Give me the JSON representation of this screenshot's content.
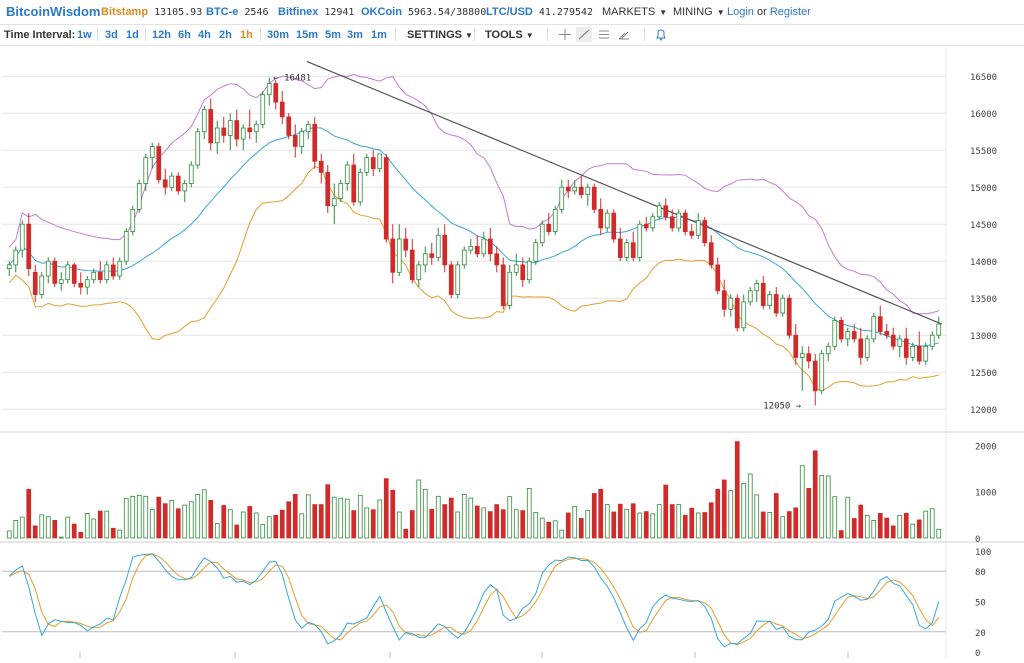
{
  "header": {
    "logo": "BitcoinWisdom",
    "tickers": [
      {
        "name": "Bitstamp",
        "value": "13105.93",
        "highlight": true
      },
      {
        "name": "BTC-e",
        "value": "2546",
        "highlight": false
      },
      {
        "name": "Bitfinex",
        "value": "12941",
        "highlight": false
      },
      {
        "name": "OKCoin",
        "value": "5963.54/38800",
        "highlight": false
      },
      {
        "name": "LTC/USD",
        "value": "41.279542",
        "highlight": false
      }
    ],
    "menus": [
      "MARKETS",
      "MINING"
    ],
    "login": "Login",
    "or": "or",
    "register": "Register"
  },
  "toolbar": {
    "label": "Time Interval:",
    "intervals": [
      "1w",
      "3d",
      "1d",
      "12h",
      "6h",
      "4h",
      "2h",
      "1h",
      "30m",
      "15m",
      "5m",
      "3m",
      "1m"
    ],
    "active_interval": "1h",
    "settings": "SETTINGS",
    "tools": "TOOLS",
    "tool_icons": [
      "crosshair-icon",
      "trendline-icon",
      "horizontal-lines-icon",
      "brush-icon",
      "bell-icon"
    ]
  },
  "chart_data": {
    "type": "candlestick",
    "price_axis": {
      "ticks": [
        16500,
        16000,
        15500,
        15000,
        14500,
        14000,
        13500,
        13000,
        12500,
        12000
      ],
      "range": [
        11800,
        16800
      ]
    },
    "annotations": {
      "high": "16481",
      "low": "12050"
    },
    "volume_axis": {
      "ticks": [
        2000,
        1000,
        0
      ],
      "range": [
        0,
        2200
      ]
    },
    "stoch_axis": {
      "ticks": [
        100,
        80,
        50,
        20,
        0
      ],
      "range": [
        0,
        105
      ]
    },
    "colors": {
      "up": "#2e8b3a",
      "down": "#d12a2a",
      "basis": "#3aa6d8",
      "upper_band": "#c57ad6",
      "lower_band": "#e0a030",
      "trendline": "#555555",
      "stoch_k": "#3aa6d8",
      "stoch_d": "#e0a030",
      "grid": "#e6e6e6"
    },
    "candles": [
      [
        13900,
        14000,
        13800,
        13950
      ],
      [
        13950,
        14200,
        13850,
        14150
      ],
      [
        14150,
        14550,
        14050,
        14500
      ],
      [
        14500,
        14650,
        13800,
        13900
      ],
      [
        13850,
        13950,
        13450,
        13550
      ],
      [
        13550,
        13850,
        13500,
        13800
      ],
      [
        13800,
        14050,
        13700,
        14000
      ],
      [
        14000,
        14050,
        13650,
        13700
      ],
      [
        13700,
        13850,
        13600,
        13750
      ],
      [
        13750,
        14000,
        13700,
        13950
      ],
      [
        13950,
        13980,
        13650,
        13700
      ],
      [
        13700,
        13850,
        13550,
        13650
      ],
      [
        13650,
        13800,
        13550,
        13750
      ],
      [
        13750,
        13900,
        13700,
        13850
      ],
      [
        13850,
        14000,
        13700,
        13750
      ],
      [
        13750,
        14000,
        13700,
        13950
      ],
      [
        13950,
        14050,
        13750,
        13800
      ],
      [
        13800,
        14050,
        13750,
        14000
      ],
      [
        14000,
        14450,
        13950,
        14400
      ],
      [
        14400,
        14750,
        14350,
        14700
      ],
      [
        14700,
        15100,
        14650,
        15050
      ],
      [
        15050,
        15450,
        14950,
        15400
      ],
      [
        15400,
        15600,
        15250,
        15550
      ],
      [
        15550,
        15600,
        15050,
        15100
      ],
      [
        15100,
        15250,
        14900,
        15000
      ],
      [
        15000,
        15200,
        14950,
        15150
      ],
      [
        15150,
        15200,
        14900,
        14950
      ],
      [
        14950,
        15100,
        14800,
        15050
      ],
      [
        15050,
        15350,
        15000,
        15300
      ],
      [
        15300,
        15800,
        15250,
        15750
      ],
      [
        15750,
        16100,
        15650,
        16050
      ],
      [
        16050,
        16200,
        15500,
        15600
      ],
      [
        15600,
        15900,
        15450,
        15800
      ],
      [
        15800,
        15950,
        15600,
        15700
      ],
      [
        15700,
        16000,
        15500,
        15900
      ],
      [
        15900,
        16050,
        15550,
        15650
      ],
      [
        15650,
        15850,
        15500,
        15800
      ],
      [
        15800,
        16050,
        15650,
        15750
      ],
      [
        15750,
        15900,
        15600,
        15850
      ],
      [
        15850,
        16300,
        15800,
        16250
      ],
      [
        16250,
        16481,
        16100,
        16400
      ],
      [
        16400,
        16450,
        16050,
        16150
      ],
      [
        16150,
        16300,
        15850,
        15950
      ],
      [
        15950,
        16000,
        15650,
        15700
      ],
      [
        15700,
        15850,
        15400,
        15550
      ],
      [
        15550,
        15800,
        15450,
        15750
      ],
      [
        15750,
        15900,
        15650,
        15850
      ],
      [
        15850,
        15950,
        15250,
        15350
      ],
      [
        15350,
        15450,
        15050,
        15200
      ],
      [
        15200,
        15300,
        14650,
        14750
      ],
      [
        14750,
        15050,
        14500,
        14850
      ],
      [
        14850,
        15100,
        14800,
        15050
      ],
      [
        15050,
        15350,
        14950,
        15300
      ],
      [
        15300,
        15450,
        14750,
        14800
      ],
      [
        14800,
        15250,
        14750,
        15200
      ],
      [
        15200,
        15450,
        15150,
        15400
      ],
      [
        15400,
        15500,
        15150,
        15250
      ],
      [
        15250,
        15450,
        15200,
        15450
      ],
      [
        15400,
        15450,
        14250,
        14300
      ],
      [
        14300,
        14500,
        13700,
        13850
      ],
      [
        13850,
        14500,
        13800,
        14300
      ],
      [
        14300,
        14450,
        14050,
        14150
      ],
      [
        14150,
        14300,
        13700,
        13750
      ],
      [
        13750,
        14000,
        13650,
        13950
      ],
      [
        13950,
        14200,
        13850,
        14100
      ],
      [
        14100,
        14250,
        13950,
        14050
      ],
      [
        14050,
        14450,
        14000,
        14350
      ],
      [
        14350,
        14500,
        13850,
        13950
      ],
      [
        13950,
        14000,
        13500,
        13550
      ],
      [
        13550,
        14000,
        13500,
        13950
      ],
      [
        13950,
        14200,
        13900,
        14150
      ],
      [
        14150,
        14300,
        14100,
        14200
      ],
      [
        14200,
        14350,
        14050,
        14100
      ],
      [
        14100,
        14400,
        14050,
        14300
      ],
      [
        14300,
        14450,
        14000,
        14100
      ],
      [
        14100,
        14200,
        13850,
        13950
      ],
      [
        13950,
        14050,
        13350,
        13400
      ],
      [
        13400,
        13950,
        13350,
        13850
      ],
      [
        13850,
        14100,
        13800,
        13950
      ],
      [
        13950,
        14050,
        13650,
        13750
      ],
      [
        13750,
        14050,
        13700,
        14000
      ],
      [
        14000,
        14300,
        13950,
        14250
      ],
      [
        14250,
        14550,
        14200,
        14500
      ],
      [
        14500,
        14650,
        14350,
        14400
      ],
      [
        14400,
        14750,
        14350,
        14700
      ],
      [
        14700,
        15100,
        14650,
        15000
      ],
      [
        15000,
        15100,
        14850,
        14950
      ],
      [
        14950,
        15100,
        14900,
        15000
      ],
      [
        15000,
        15150,
        14850,
        14900
      ],
      [
        14900,
        15050,
        14750,
        15000
      ],
      [
        15000,
        15050,
        14650,
        14700
      ],
      [
        14700,
        14850,
        14350,
        14450
      ],
      [
        14450,
        14700,
        14400,
        14650
      ],
      [
        14650,
        14700,
        14250,
        14300
      ],
      [
        14300,
        14450,
        14000,
        14050
      ],
      [
        14050,
        14300,
        14000,
        14250
      ],
      [
        14250,
        14400,
        14000,
        14050
      ],
      [
        14050,
        14550,
        14000,
        14500
      ],
      [
        14500,
        14600,
        14400,
        14450
      ],
      [
        14450,
        14650,
        14400,
        14600
      ],
      [
        14600,
        14800,
        14550,
        14750
      ],
      [
        14750,
        14850,
        14550,
        14600
      ],
      [
        14600,
        14700,
        14400,
        14450
      ],
      [
        14450,
        14700,
        14400,
        14650
      ],
      [
        14650,
        14700,
        14350,
        14400
      ],
      [
        14400,
        14500,
        14300,
        14350
      ],
      [
        14350,
        14650,
        14300,
        14550
      ],
      [
        14550,
        14600,
        14200,
        14250
      ],
      [
        14250,
        14350,
        13900,
        13950
      ],
      [
        13950,
        14050,
        13550,
        13600
      ],
      [
        13600,
        13750,
        13250,
        13350
      ],
      [
        13350,
        13550,
        13250,
        13500
      ],
      [
        13500,
        13550,
        13050,
        13100
      ],
      [
        13100,
        13550,
        13050,
        13450
      ],
      [
        13450,
        13650,
        13400,
        13600
      ],
      [
        13600,
        13750,
        13450,
        13700
      ],
      [
        13700,
        13800,
        13350,
        13400
      ],
      [
        13400,
        13600,
        13350,
        13550
      ],
      [
        13550,
        13650,
        13250,
        13300
      ],
      [
        13300,
        13550,
        13250,
        13500
      ],
      [
        13500,
        13550,
        12950,
        13000
      ],
      [
        13000,
        13150,
        12600,
        12700
      ],
      [
        12700,
        12850,
        12250,
        12750
      ],
      [
        12750,
        12850,
        12550,
        12650
      ],
      [
        12650,
        12750,
        12050,
        12250
      ],
      [
        12250,
        12800,
        12200,
        12750
      ],
      [
        12750,
        12900,
        12650,
        12850
      ],
      [
        12850,
        13250,
        12800,
        13200
      ],
      [
        13200,
        13250,
        12900,
        12950
      ],
      [
        12950,
        13100,
        12850,
        13050
      ],
      [
        13050,
        13150,
        12900,
        12950
      ],
      [
        12950,
        13100,
        12600,
        12700
      ],
      [
        12700,
        13000,
        12650,
        12950
      ],
      [
        12950,
        13300,
        12900,
        13250
      ],
      [
        13250,
        13400,
        13000,
        13050
      ],
      [
        13050,
        13150,
        12950,
        13000
      ],
      [
        13000,
        13100,
        12800,
        12850
      ],
      [
        12850,
        13000,
        12700,
        12950
      ],
      [
        12950,
        13100,
        12600,
        12700
      ],
      [
        12700,
        12900,
        12650,
        12850
      ],
      [
        12850,
        13050,
        12600,
        12650
      ],
      [
        12650,
        12900,
        12600,
        12850
      ],
      [
        12850,
        13050,
        12800,
        13000
      ],
      [
        13000,
        13250,
        12950,
        13150
      ]
    ],
    "volumes": [
      150,
      380,
      450,
      1050,
      260,
      500,
      460,
      380,
      20,
      450,
      300,
      120,
      530,
      410,
      580,
      580,
      210,
      170,
      850,
      900,
      920,
      900,
      620,
      880,
      740,
      810,
      630,
      710,
      780,
      940,
      1040,
      810,
      310,
      700,
      620,
      280,
      560,
      680,
      540,
      290,
      460,
      490,
      600,
      780,
      940,
      520,
      930,
      720,
      720,
      1150,
      880,
      860,
      840,
      590,
      920,
      650,
      610,
      820,
      1280,
      1030,
      560,
      190,
      590,
      1250,
      1050,
      620,
      900,
      720,
      860,
      560,
      940,
      860,
      690,
      650,
      570,
      720,
      610,
      890,
      610,
      590,
      1070,
      550,
      430,
      340,
      370,
      170,
      540,
      680,
      420,
      590,
      960,
      1050,
      720,
      560,
      730,
      620,
      740,
      540,
      570,
      520,
      720,
      1140,
      720,
      720,
      490,
      640,
      540,
      550,
      760,
      1050,
      1250,
      1020,
      2080,
      1180,
      1380,
      930,
      560,
      550,
      960,
      460,
      570,
      650,
      1560,
      1070,
      1880,
      1350,
      1340,
      890,
      160,
      880,
      420,
      710,
      490,
      380,
      530,
      430,
      260,
      490,
      530,
      300,
      390,
      580,
      630,
      190
    ]
  }
}
